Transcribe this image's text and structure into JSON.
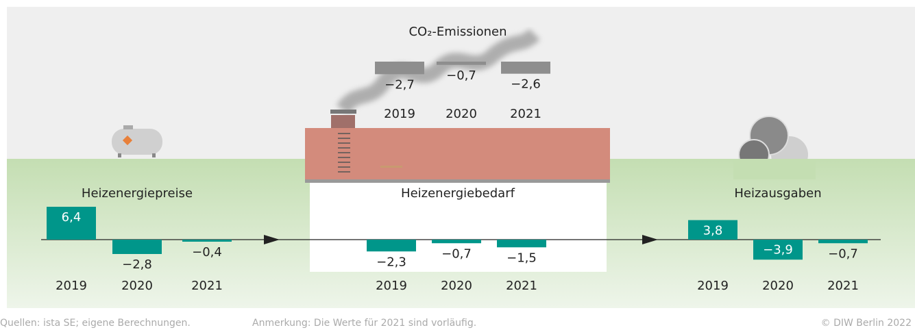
{
  "chart_data": [
    {
      "type": "bar",
      "title": "Heizenergiepreise",
      "categories": [
        "2019",
        "2020",
        "2021"
      ],
      "values": [
        6.4,
        -2.8,
        -0.4
      ],
      "value_labels": [
        "6,4",
        "−2,8",
        "−0,4"
      ],
      "color": "#00968a"
    },
    {
      "type": "bar",
      "title": "Heizenergiebedarf",
      "categories": [
        "2019",
        "2020",
        "2021"
      ],
      "values": [
        -2.3,
        -0.7,
        -1.5
      ],
      "value_labels": [
        "−2,3",
        "−0,7",
        "−1,5"
      ],
      "color": "#00968a"
    },
    {
      "type": "bar",
      "title": "Heizausgaben",
      "categories": [
        "2019",
        "2020",
        "2021"
      ],
      "values": [
        3.8,
        -3.9,
        -0.7
      ],
      "value_labels": [
        "3,8",
        "−3,9",
        "−0,7"
      ],
      "color": "#00968a"
    },
    {
      "type": "bar",
      "title": "CO₂-Emissionen",
      "categories": [
        "2019",
        "2020",
        "2021"
      ],
      "values": [
        -2.7,
        -0.7,
        -2.6
      ],
      "value_labels": [
        "−2,7",
        "−0,7",
        "−2,6"
      ],
      "color": "#8e8e8e"
    }
  ],
  "source": "Quellen: ista SE; eigene Berechnungen.",
  "note": "Anmerkung: Die Werte für 2021 sind vorläufig.",
  "copyright": "© DIW Berlin 2022"
}
